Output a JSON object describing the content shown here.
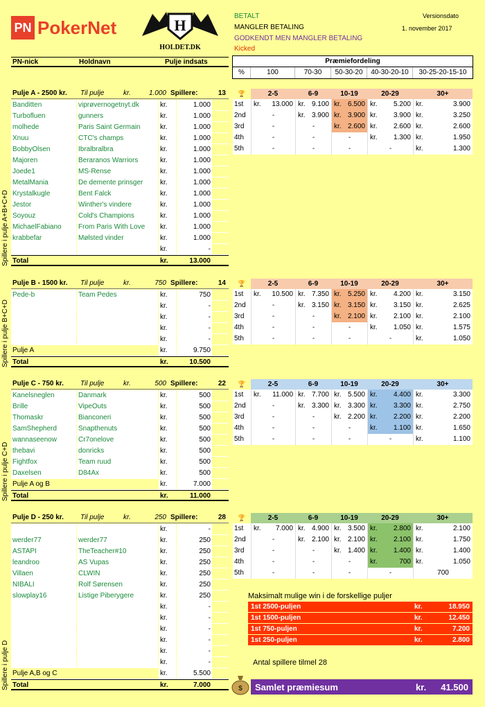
{
  "brand": {
    "pn_badge": "PN",
    "pn_name": "PokerNet",
    "holdet": "HOLDET.DK"
  },
  "legend": {
    "betalt": "BETALT",
    "mangler": "MANGLER BETALING",
    "godkendt": "GODKENDT MEN MANGLER BETALING",
    "kicked": "Kicked",
    "version_label": "Versionsdato",
    "version_date": "1. november 2017"
  },
  "colors": {
    "green": "#1a8a3a",
    "purple": "#7030a0",
    "red": "#ff3300",
    "orange": "#f8cbad",
    "orange_dark": "#f4b183",
    "blue": "#bdd7ee",
    "blue_dark": "#9dc3e6",
    "greenbg": "#a9d08e",
    "greenbg_dark": "#8bc26a",
    "kicked": "#e03000",
    "godkendt": "#7030a0",
    "betalt": "#1a8a3a"
  },
  "header": {
    "pn_nick": "PN-nick",
    "holdnavn": "Holdnavn",
    "pulje": "Pulje indsats"
  },
  "prize": {
    "title": "Præmiefordeling",
    "pct_label": "%",
    "cols": [
      "100",
      "70-30",
      "50-30-20",
      "40-30-20-10",
      "30-25-20-15-10"
    ]
  },
  "pools": [
    {
      "title": "Pulje A - 2500 kr.",
      "til_pulje": "Til pulje",
      "kr": "kr.",
      "til_amt": "1.000",
      "spillere_label": "Spillere:",
      "spillere": "13",
      "side": "Spillere i pulje A+B+C+D",
      "players": [
        [
          "Banditten",
          "viprøvernogetnyt.dk",
          "kr.",
          "1.000"
        ],
        [
          "Turbofluen",
          "gunners",
          "kr.",
          "1.000"
        ],
        [
          "molhede",
          "Paris Saint Germain",
          "kr.",
          "1.000"
        ],
        [
          "Xnuu",
          "CTC's champs",
          "kr.",
          "1.000"
        ],
        [
          "BobbyOlsen",
          "Ibralbralbra",
          "kr.",
          "1.000"
        ],
        [
          "Majoren",
          "Beraranos Warriors",
          "kr.",
          "1.000"
        ],
        [
          "Joede1",
          "MS-Rense",
          "kr.",
          "1.000"
        ],
        [
          "MetalMania",
          "De demente prinsger",
          "kr.",
          "1.000"
        ],
        [
          "Krystalkugle",
          "Bent Falck",
          "kr.",
          "1.000"
        ],
        [
          "Jestor",
          "Winther's vindere",
          "kr.",
          "1.000"
        ],
        [
          "Soyouz",
          "Cold's Champions",
          "kr.",
          "1.000"
        ],
        [
          "MichaelFabiano",
          "From Paris With Love",
          "kr.",
          "1.000"
        ],
        [
          "krabbefar",
          "Mølsted vinder",
          "kr.",
          "1.000"
        ],
        [
          "",
          "",
          "kr.",
          "-"
        ]
      ],
      "sums": [],
      "total": [
        "Total",
        "kr.",
        "13.000"
      ],
      "table": {
        "cols": [
          "2-5",
          "6-9",
          "10-19",
          "20-29",
          "30+"
        ],
        "rows": [
          [
            "1st",
            "kr.",
            "13.000",
            "kr.",
            "9.100",
            "kr.",
            "6.500",
            "kr.",
            "5.200",
            "kr.",
            "3.900"
          ],
          [
            "2nd",
            "",
            "-",
            "kr.",
            "3.900",
            "kr.",
            "3.900",
            "kr.",
            "3.900",
            "kr.",
            "3.250"
          ],
          [
            "3rd",
            "",
            "-",
            "",
            "-",
            "kr.",
            "2.600",
            "kr.",
            "2.600",
            "kr.",
            "2.600"
          ],
          [
            "4th",
            "",
            "-",
            "",
            "-",
            "",
            "-",
            "kr.",
            "1.300",
            "kr.",
            "1.950"
          ],
          [
            "5th",
            "",
            "-",
            "",
            "-",
            "",
            "-",
            "",
            "-",
            "kr.",
            "1.300"
          ]
        ],
        "hl_col": 2,
        "hl_rows": 3
      }
    },
    {
      "title": "Pulje B - 1500 kr.",
      "til_pulje": "Til pulje",
      "kr": "kr.",
      "til_amt": "750",
      "spillere_label": "Spillere:",
      "spillere": "14",
      "side": "Spillere i pulje B+C+D",
      "players": [
        [
          "Pede-b",
          "Team Pedes",
          "kr.",
          "750"
        ],
        [
          "",
          "",
          "kr.",
          "-"
        ],
        [
          "",
          "",
          "kr.",
          "-"
        ],
        [
          "",
          "",
          "kr.",
          "-"
        ],
        [
          "",
          "",
          "kr.",
          "-"
        ]
      ],
      "sums": [
        [
          "Pulje A",
          "kr.",
          "9.750"
        ]
      ],
      "total": [
        "Total",
        "kr.",
        "10.500"
      ],
      "table": {
        "cols": [
          "2-5",
          "6-9",
          "10-19",
          "20-29",
          "30+"
        ],
        "rows": [
          [
            "1st",
            "kr.",
            "10.500",
            "kr.",
            "7.350",
            "kr.",
            "5.250",
            "kr.",
            "4.200",
            "kr.",
            "3.150"
          ],
          [
            "2nd",
            "",
            "-",
            "kr.",
            "3.150",
            "kr.",
            "3.150",
            "kr.",
            "3.150",
            "kr.",
            "2.625"
          ],
          [
            "3rd",
            "",
            "-",
            "",
            "-",
            "kr.",
            "2.100",
            "kr.",
            "2.100",
            "kr.",
            "2.100"
          ],
          [
            "4th",
            "",
            "-",
            "",
            "-",
            "",
            "-",
            "kr.",
            "1.050",
            "kr.",
            "1.575"
          ],
          [
            "5th",
            "",
            "-",
            "",
            "-",
            "",
            "-",
            "",
            "-",
            "kr.",
            "1.050"
          ]
        ],
        "hl_col": 2,
        "hl_rows": 3
      }
    },
    {
      "title": "Pulje C - 750 kr.",
      "til_pulje": "Til pulje",
      "kr": "kr.",
      "til_amt": "500",
      "spillere_label": "Spillere:",
      "spillere": "22",
      "side": "Spillere i pulje C+D",
      "players": [
        [
          "Kanelsneglen",
          "Danmark",
          "kr.",
          "500"
        ],
        [
          "Brille",
          "VipeOuts",
          "kr.",
          "500"
        ],
        [
          "Thomaskr",
          "Bianconeri",
          "kr.",
          "500"
        ],
        [
          "SamShepherd",
          "Snapthenuts",
          "kr.",
          "500"
        ],
        [
          "wannaseenow",
          "Cr7onelove",
          "kr.",
          "500"
        ],
        [
          "thebavi",
          "donricks",
          "kr.",
          "500"
        ],
        [
          "Fightfox",
          "Team ruud",
          "kr.",
          "500"
        ],
        [
          "Daxelsen",
          "D84Ax",
          "kr.",
          "500"
        ]
      ],
      "sums": [
        [
          "Pulje A og B",
          "kr.",
          "7.000"
        ]
      ],
      "total": [
        "Total",
        "kr.",
        "11.000"
      ],
      "table": {
        "cols": [
          "2-5",
          "6-9",
          "10-19",
          "20-29",
          "30+"
        ],
        "rows": [
          [
            "1st",
            "kr.",
            "11.000",
            "kr.",
            "7.700",
            "kr.",
            "5.500",
            "kr.",
            "4.400",
            "kr.",
            "3.300"
          ],
          [
            "2nd",
            "",
            "-",
            "kr.",
            "3.300",
            "kr.",
            "3.300",
            "kr.",
            "3.300",
            "kr.",
            "2.750"
          ],
          [
            "3rd",
            "",
            "-",
            "",
            "-",
            "kr.",
            "2.200",
            "kr.",
            "2.200",
            "kr.",
            "2.200"
          ],
          [
            "4th",
            "",
            "-",
            "",
            "-",
            "",
            "-",
            "kr.",
            "1.100",
            "kr.",
            "1.650"
          ],
          [
            "5th",
            "",
            "-",
            "",
            "-",
            "",
            "-",
            "",
            "-",
            "kr.",
            "1.100"
          ]
        ],
        "hl_col": 3,
        "hl_rows": 4
      }
    },
    {
      "title": "Pulje D - 250 kr.",
      "til_pulje": "Til pulje",
      "kr": "kr.",
      "til_amt": "250",
      "spillere_label": "Spillere:",
      "spillere": "28",
      "side": "Spillere i pulje D",
      "players": [
        [
          "",
          "",
          "kr.",
          "-"
        ],
        [
          "werder77",
          "werder77",
          "kr.",
          "250"
        ],
        [
          "ASTAPI",
          "TheTeacher#10",
          "kr.",
          "250"
        ],
        [
          "leandroo",
          "AS Vupas",
          "kr.",
          "250"
        ],
        [
          "Villaen",
          "CLWIN",
          "kr.",
          "250"
        ],
        [
          "NIBALI",
          "Rolf Sørensen",
          "kr.",
          "250"
        ],
        [
          "slowplay16",
          "Listige Piberygere",
          "kr.",
          "250"
        ],
        [
          "",
          "",
          "kr.",
          "-"
        ],
        [
          "",
          "",
          "kr.",
          "-"
        ],
        [
          "",
          "",
          "kr.",
          "-"
        ],
        [
          "",
          "",
          "kr.",
          "-"
        ],
        [
          "",
          "",
          "kr.",
          "-"
        ],
        [
          "",
          "",
          "kr.",
          "-"
        ]
      ],
      "sums": [
        [
          "Pulje A,B og C",
          "kr.",
          "5.500"
        ]
      ],
      "total": [
        "Total",
        "kr.",
        "7.000"
      ],
      "table": {
        "cols": [
          "2-5",
          "6-9",
          "10-19",
          "20-29",
          "30+"
        ],
        "rows": [
          [
            "1st",
            "kr.",
            "7.000",
            "kr.",
            "4.900",
            "kr.",
            "3.500",
            "kr.",
            "2.800",
            "kr.",
            "2.100"
          ],
          [
            "2nd",
            "",
            "-",
            "kr.",
            "2.100",
            "kr.",
            "2.100",
            "kr.",
            "2.100",
            "kr.",
            "1.750"
          ],
          [
            "3rd",
            "",
            "-",
            "",
            "-",
            "kr.",
            "1.400",
            "kr.",
            "1.400",
            "kr.",
            "1.400"
          ],
          [
            "4th",
            "",
            "-",
            "",
            "-",
            "",
            "-",
            "kr.",
            "700",
            "kr.",
            "1.050"
          ],
          [
            "5th",
            "",
            "-",
            "",
            "-",
            "",
            "-",
            "",
            "-",
            "",
            "700"
          ]
        ],
        "hl_col": 3,
        "hl_rows": 4
      }
    }
  ],
  "maxwin": {
    "title": "Maksimalt mulige win i de forskellige puljer",
    "rows": [
      [
        "1st 2500-puljen",
        "kr.",
        "18.950"
      ],
      [
        "1st 1500-puljen",
        "kr.",
        "12.450"
      ],
      [
        "1st 750-puljen",
        "kr.",
        "7.200"
      ],
      [
        "1st 250-puljen",
        "kr.",
        "2.800"
      ]
    ]
  },
  "antal": "Antal spillere tilmel 28",
  "samlet": {
    "label": "Samlet præmiesum",
    "kr": "kr.",
    "value": "41.500"
  }
}
